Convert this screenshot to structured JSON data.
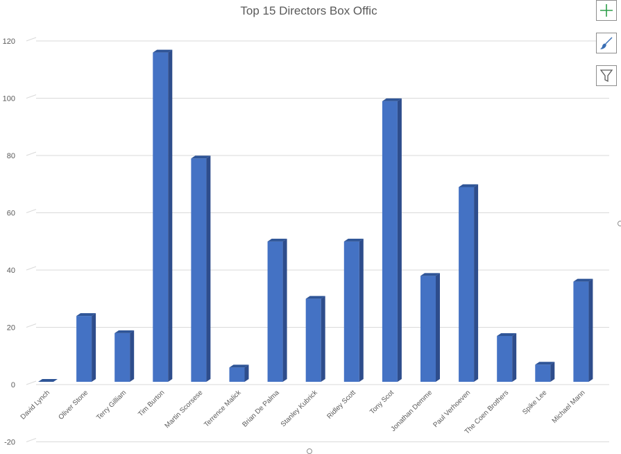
{
  "chart_data": {
    "type": "bar",
    "title": "Top 15 Directors Box Offic",
    "categories": [
      "David Lynch",
      "Oliver Stone",
      "Terry Gilliam",
      "Tim Burton",
      "Martin Scorsese",
      "Terrence Malick",
      "Brian De Palma",
      "Stanley Kubrick",
      "Ridley Scott",
      "Tony Scot",
      "Jonathan Demme",
      "Paul Verhoeven",
      "The Coen Brothers",
      "Spike Lee",
      "Michael Mann"
    ],
    "values": [
      0,
      23,
      17,
      115,
      78,
      5,
      49,
      29,
      49,
      98,
      37,
      68,
      16,
      6,
      35
    ],
    "ylim": [
      -20,
      120
    ],
    "yticks": [
      "-20",
      "0",
      "20",
      "40",
      "60",
      "80",
      "100",
      "120"
    ],
    "xlabel": "",
    "ylabel": "",
    "grid": true,
    "bar_color": "#4472c4",
    "bar_side_color": "#2e4d8c",
    "bar_top_color": "#2f5597",
    "style": "3d-column"
  },
  "toolbar": {
    "add_icon": "plus-icon",
    "style_icon": "paintbrush-icon",
    "filter_icon": "filter-icon"
  }
}
